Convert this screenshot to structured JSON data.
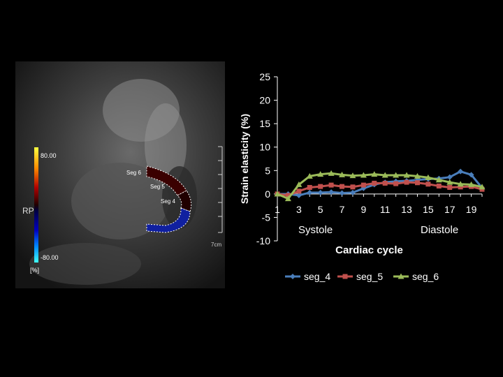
{
  "image_panel": {
    "colorbar": {
      "max_label": "80.00",
      "min_label": "-80.00",
      "name": "RP",
      "unit_label": "[%]"
    },
    "segment_labels": [
      "Seg 6",
      "Seg 5",
      "Seg 4"
    ],
    "scale_label": "7cm"
  },
  "chart_data": {
    "type": "line",
    "xlabel": "Cardiac cycle",
    "ylabel": "Strain elasticity (%)",
    "ylim": [
      -10,
      25
    ],
    "yticks": [
      25,
      20,
      15,
      10,
      5,
      0,
      -5,
      -10
    ],
    "xlim": [
      1,
      20
    ],
    "xticks": [
      1,
      3,
      5,
      7,
      9,
      11,
      13,
      15,
      17,
      19
    ],
    "x": [
      1,
      2,
      3,
      4,
      5,
      6,
      7,
      8,
      9,
      10,
      11,
      12,
      13,
      14,
      15,
      16,
      17,
      18,
      19,
      20
    ],
    "annotations": [
      "Systole",
      "Diastole"
    ],
    "legend_position": "bottom",
    "grid": false,
    "series": [
      {
        "name": "seg_4",
        "color": "#4a7ebb",
        "marker": "diamond",
        "values": [
          0,
          0,
          -0.3,
          0.3,
          0.3,
          0.4,
          0.2,
          0.3,
          1.2,
          2.0,
          2.5,
          2.7,
          2.8,
          3.0,
          3.2,
          3.3,
          3.6,
          4.8,
          4.1,
          1.3
        ]
      },
      {
        "name": "seg_5",
        "color": "#c0504d",
        "marker": "square",
        "values": [
          0,
          -0.3,
          0.6,
          1.4,
          1.6,
          1.9,
          1.6,
          1.5,
          1.9,
          2.3,
          2.3,
          2.2,
          2.5,
          2.4,
          2.1,
          1.7,
          1.4,
          1.5,
          1.6,
          1.0
        ]
      },
      {
        "name": "seg_6",
        "color": "#9bbb59",
        "marker": "triangle",
        "values": [
          0,
          -1.0,
          2.0,
          3.8,
          4.2,
          4.4,
          4.1,
          3.9,
          4.0,
          4.2,
          4.0,
          4.0,
          4.0,
          3.8,
          3.5,
          3.0,
          2.5,
          2.1,
          2.0,
          1.5
        ]
      }
    ]
  }
}
